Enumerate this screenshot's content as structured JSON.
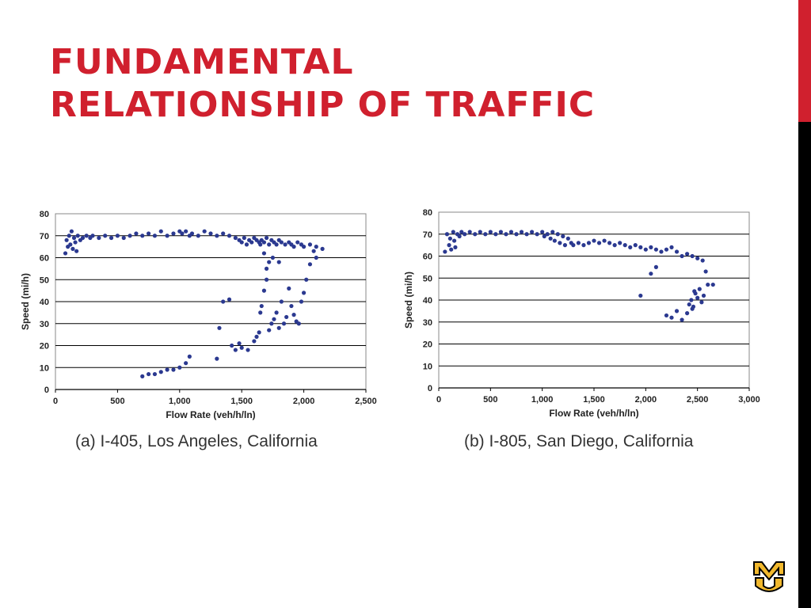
{
  "slide": {
    "title_line1": "FUNDAMENTAL",
    "title_line2": "RELATIONSHIP OF TRAFFIC",
    "accent_color": "#d0202e",
    "logo_icon": "mizzou-mu-logo"
  },
  "chart_data": [
    {
      "type": "scatter",
      "caption": "(a) I-405, Los Angeles, California",
      "xlabel": "Flow Rate (veh/h/ln)",
      "ylabel": "Speed (mi/h)",
      "xlim": [
        0,
        2500
      ],
      "ylim": [
        0,
        80
      ],
      "xticks": [
        0,
        500,
        1000,
        1500,
        2000,
        2500
      ],
      "xtick_labels": [
        "0",
        "500",
        "1,000",
        "1,500",
        "2,000",
        "2,500"
      ],
      "yticks": [
        0,
        10,
        20,
        30,
        40,
        50,
        60,
        70,
        80
      ],
      "grid": "horizontal",
      "marker_color": "#2b3990",
      "points": [
        [
          80,
          62
        ],
        [
          90,
          68
        ],
        [
          100,
          65
        ],
        [
          110,
          70
        ],
        [
          120,
          66
        ],
        [
          130,
          72
        ],
        [
          140,
          64
        ],
        [
          150,
          69
        ],
        [
          160,
          67
        ],
        [
          170,
          63
        ],
        [
          180,
          70
        ],
        [
          200,
          68
        ],
        [
          220,
          69
        ],
        [
          250,
          70
        ],
        [
          280,
          69
        ],
        [
          300,
          70
        ],
        [
          350,
          69
        ],
        [
          400,
          70
        ],
        [
          450,
          69
        ],
        [
          500,
          70
        ],
        [
          550,
          69
        ],
        [
          600,
          70
        ],
        [
          650,
          71
        ],
        [
          700,
          70
        ],
        [
          750,
          71
        ],
        [
          800,
          70
        ],
        [
          850,
          72
        ],
        [
          900,
          70
        ],
        [
          950,
          71
        ],
        [
          1000,
          72
        ],
        [
          1020,
          71
        ],
        [
          1050,
          72
        ],
        [
          1080,
          70
        ],
        [
          1100,
          71
        ],
        [
          1150,
          70
        ],
        [
          1200,
          72
        ],
        [
          1250,
          71
        ],
        [
          1300,
          70
        ],
        [
          1350,
          71
        ],
        [
          1400,
          70
        ],
        [
          1450,
          69
        ],
        [
          1480,
          68
        ],
        [
          1500,
          67
        ],
        [
          1520,
          69
        ],
        [
          1540,
          66
        ],
        [
          1560,
          68
        ],
        [
          1580,
          67
        ],
        [
          1600,
          69
        ],
        [
          1620,
          68
        ],
        [
          1640,
          67
        ],
        [
          1650,
          66
        ],
        [
          1660,
          68
        ],
        [
          1680,
          67
        ],
        [
          1700,
          69
        ],
        [
          1720,
          66
        ],
        [
          1740,
          68
        ],
        [
          1760,
          67
        ],
        [
          1780,
          66
        ],
        [
          1800,
          68
        ],
        [
          1820,
          67
        ],
        [
          1850,
          66
        ],
        [
          1880,
          67
        ],
        [
          1900,
          66
        ],
        [
          1920,
          65
        ],
        [
          1950,
          67
        ],
        [
          1980,
          66
        ],
        [
          2000,
          65
        ],
        [
          2050,
          66
        ],
        [
          2100,
          65
        ],
        [
          2150,
          64
        ],
        [
          700,
          6
        ],
        [
          750,
          7
        ],
        [
          800,
          7
        ],
        [
          850,
          8
        ],
        [
          900,
          9
        ],
        [
          950,
          9
        ],
        [
          1000,
          10
        ],
        [
          1050,
          12
        ],
        [
          1080,
          15
        ],
        [
          1300,
          14
        ],
        [
          1320,
          28
        ],
        [
          1350,
          40
        ],
        [
          1400,
          41
        ],
        [
          1420,
          20
        ],
        [
          1450,
          18
        ],
        [
          1480,
          21
        ],
        [
          1500,
          19
        ],
        [
          1550,
          18
        ],
        [
          1600,
          22
        ],
        [
          1620,
          24
        ],
        [
          1640,
          26
        ],
        [
          1650,
          35
        ],
        [
          1660,
          38
        ],
        [
          1680,
          45
        ],
        [
          1700,
          50
        ],
        [
          1720,
          27
        ],
        [
          1740,
          30
        ],
        [
          1760,
          32
        ],
        [
          1780,
          35
        ],
        [
          1800,
          28
        ],
        [
          1820,
          40
        ],
        [
          1840,
          30
        ],
        [
          1860,
          33
        ],
        [
          1880,
          46
        ],
        [
          1900,
          38
        ],
        [
          1920,
          34
        ],
        [
          1940,
          31
        ],
        [
          1960,
          30
        ],
        [
          1980,
          40
        ],
        [
          2000,
          44
        ],
        [
          2020,
          50
        ],
        [
          2050,
          57
        ],
        [
          2080,
          63
        ],
        [
          2100,
          60
        ],
        [
          1700,
          55
        ],
        [
          1750,
          60
        ],
        [
          1800,
          58
        ],
        [
          1680,
          62
        ],
        [
          1720,
          58
        ]
      ]
    },
    {
      "type": "scatter",
      "caption": "(b) I-805, San Diego, California",
      "xlabel": "Flow Rate (veh/h/ln)",
      "ylabel": "Speed (mi/h)",
      "xlim": [
        0,
        3000
      ],
      "ylim": [
        0,
        80
      ],
      "xticks": [
        0,
        500,
        1000,
        1500,
        2000,
        2500,
        3000
      ],
      "xtick_labels": [
        "0",
        "500",
        "1,000",
        "1,500",
        "2,000",
        "2,500",
        "3,000"
      ],
      "yticks": [
        0,
        10,
        20,
        30,
        40,
        50,
        60,
        70,
        80
      ],
      "grid": "horizontal",
      "marker_color": "#2b3990",
      "points": [
        [
          60,
          62
        ],
        [
          80,
          70
        ],
        [
          100,
          65
        ],
        [
          110,
          68
        ],
        [
          120,
          63
        ],
        [
          140,
          71
        ],
        [
          150,
          67
        ],
        [
          160,
          64
        ],
        [
          180,
          70
        ],
        [
          200,
          69
        ],
        [
          220,
          71
        ],
        [
          250,
          70
        ],
        [
          300,
          71
        ],
        [
          350,
          70
        ],
        [
          400,
          71
        ],
        [
          450,
          70
        ],
        [
          500,
          71
        ],
        [
          550,
          70
        ],
        [
          600,
          71
        ],
        [
          650,
          70
        ],
        [
          700,
          71
        ],
        [
          750,
          70
        ],
        [
          800,
          71
        ],
        [
          850,
          70
        ],
        [
          900,
          71
        ],
        [
          950,
          70
        ],
        [
          1000,
          71
        ],
        [
          1020,
          69
        ],
        [
          1050,
          70
        ],
        [
          1080,
          68
        ],
        [
          1100,
          71
        ],
        [
          1120,
          67
        ],
        [
          1150,
          70
        ],
        [
          1170,
          66
        ],
        [
          1200,
          69
        ],
        [
          1220,
          65
        ],
        [
          1250,
          68
        ],
        [
          1280,
          66
        ],
        [
          1300,
          65
        ],
        [
          1350,
          66
        ],
        [
          1400,
          65
        ],
        [
          1450,
          66
        ],
        [
          1500,
          67
        ],
        [
          1550,
          66
        ],
        [
          1600,
          67
        ],
        [
          1650,
          66
        ],
        [
          1700,
          65
        ],
        [
          1750,
          66
        ],
        [
          1800,
          65
        ],
        [
          1850,
          64
        ],
        [
          1900,
          65
        ],
        [
          1950,
          64
        ],
        [
          2000,
          63
        ],
        [
          2050,
          64
        ],
        [
          2100,
          63
        ],
        [
          2150,
          62
        ],
        [
          2200,
          63
        ],
        [
          2250,
          64
        ],
        [
          2300,
          62
        ],
        [
          2350,
          60
        ],
        [
          2400,
          61
        ],
        [
          2450,
          60
        ],
        [
          2500,
          59
        ],
        [
          2550,
          58
        ],
        [
          1950,
          42
        ],
        [
          2050,
          52
        ],
        [
          2100,
          55
        ],
        [
          2200,
          33
        ],
        [
          2250,
          32
        ],
        [
          2300,
          35
        ],
        [
          2350,
          31
        ],
        [
          2400,
          34
        ],
        [
          2420,
          38
        ],
        [
          2440,
          40
        ],
        [
          2460,
          37
        ],
        [
          2480,
          43
        ],
        [
          2500,
          41
        ],
        [
          2520,
          45
        ],
        [
          2540,
          39
        ],
        [
          2560,
          42
        ],
        [
          2580,
          53
        ],
        [
          2600,
          47
        ],
        [
          2650,
          47
        ],
        [
          2450,
          36
        ],
        [
          2470,
          44
        ]
      ]
    }
  ]
}
